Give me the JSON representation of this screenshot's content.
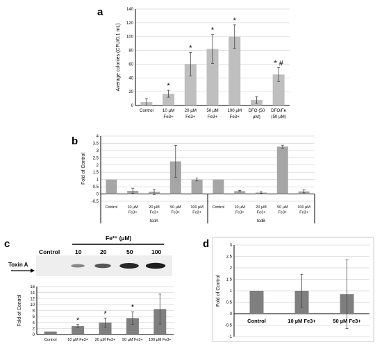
{
  "panels": {
    "a": "a",
    "b": "b",
    "c": "c",
    "d": "d"
  },
  "blot": {
    "header": "Fe³⁺ (µM)",
    "lanes": [
      "Control",
      "10",
      "20",
      "50",
      "100"
    ],
    "band_label": "Toxin A",
    "band_intensity": [
      0.0,
      0.35,
      0.6,
      0.85,
      0.9
    ]
  },
  "colors": {
    "bar_light": "#bfbfbf",
    "bar_mid": "#a6a6a6",
    "bar_dark": "#7f7f7f",
    "grid": "#d9d9d9"
  },
  "chart_data": [
    {
      "id": "a",
      "type": "bar",
      "categories": [
        [
          "Control"
        ],
        [
          "10 µM",
          "Fe3+"
        ],
        [
          "20 µM",
          "Fe3+"
        ],
        [
          "50 µM",
          "Fe3+"
        ],
        [
          "100 µM",
          "Fe3+"
        ],
        [
          "DFO (50",
          "µM)"
        ],
        [
          "DFO/Fe",
          "(50 µM)"
        ]
      ],
      "values": [
        5,
        17,
        60,
        82,
        100,
        8,
        45
      ],
      "errors": [
        5,
        5,
        17,
        21,
        17,
        5,
        10
      ],
      "annotations": [
        "",
        "*",
        "*",
        "*",
        "*",
        "",
        "* #"
      ],
      "ylabel": "Average colonies (CFU/0.1 mL)",
      "ylim": [
        0,
        140
      ],
      "yticks": [
        0,
        20,
        40,
        60,
        80,
        100,
        120,
        140
      ],
      "grid": true
    },
    {
      "id": "b",
      "type": "bar",
      "categories": [
        [
          "Control"
        ],
        [
          "10 µM",
          "Fe3+"
        ],
        [
          "20 µM",
          "Fe3+"
        ],
        [
          "50 µM",
          "Fe3+"
        ],
        [
          "100 µM",
          "Fe3+"
        ],
        [
          "Control"
        ],
        [
          "10 µM",
          "Fe3+"
        ],
        [
          "20 µM",
          "Fe3+"
        ],
        [
          "50 µM",
          "Fe3+"
        ],
        [
          "100 µM",
          "Fe3+"
        ]
      ],
      "groups": [
        {
          "label": "tcdA",
          "from": 0,
          "to": 4
        },
        {
          "label": "tcdB",
          "from": 5,
          "to": 9
        }
      ],
      "values": [
        1,
        0.22,
        0.15,
        2.25,
        1.0,
        1,
        0.2,
        0.1,
        3.27,
        0.18
      ],
      "errors": [
        0,
        0.18,
        0.18,
        1.1,
        0.1,
        0,
        0.04,
        0.06,
        0.1,
        0.1
      ],
      "ylabel": "Fold of Control",
      "ylim": [
        -0.5,
        4
      ],
      "yticks": [
        -0.5,
        0,
        0.5,
        1,
        1.5,
        2,
        2.5,
        3,
        3.5,
        4
      ],
      "grid": true
    },
    {
      "id": "c",
      "type": "bar",
      "categories": [
        [
          "Control"
        ],
        [
          "10 µM Fe3+"
        ],
        [
          "20 µM Fe3+"
        ],
        [
          "50 µM Fe3+"
        ],
        [
          "100 µM Fe3+"
        ]
      ],
      "values": [
        1,
        2.8,
        4.0,
        5.5,
        8.5
      ],
      "errors": [
        0,
        0.5,
        1.5,
        2.1,
        5.0
      ],
      "annotations": [
        "",
        "*",
        "*",
        "*",
        ""
      ],
      "ylabel": "Fold of Control",
      "ylim": [
        0,
        16
      ],
      "yticks": [
        0,
        2,
        4,
        6,
        8,
        10,
        12,
        14,
        16
      ],
      "grid": true
    },
    {
      "id": "d",
      "type": "bar",
      "categories": [
        [
          "Control"
        ],
        [
          "10 µM Fe3+"
        ],
        [
          "50 µM Fe3+"
        ]
      ],
      "values": [
        1,
        1,
        0.85
      ],
      "errors": [
        0,
        0.72,
        1.5
      ],
      "ylabel": "Fold of Control",
      "ylim": [
        -1,
        3
      ],
      "yticks": [
        -1,
        -0.5,
        0,
        0.5,
        1,
        1.5,
        2,
        2.5,
        3
      ],
      "grid": true
    }
  ]
}
